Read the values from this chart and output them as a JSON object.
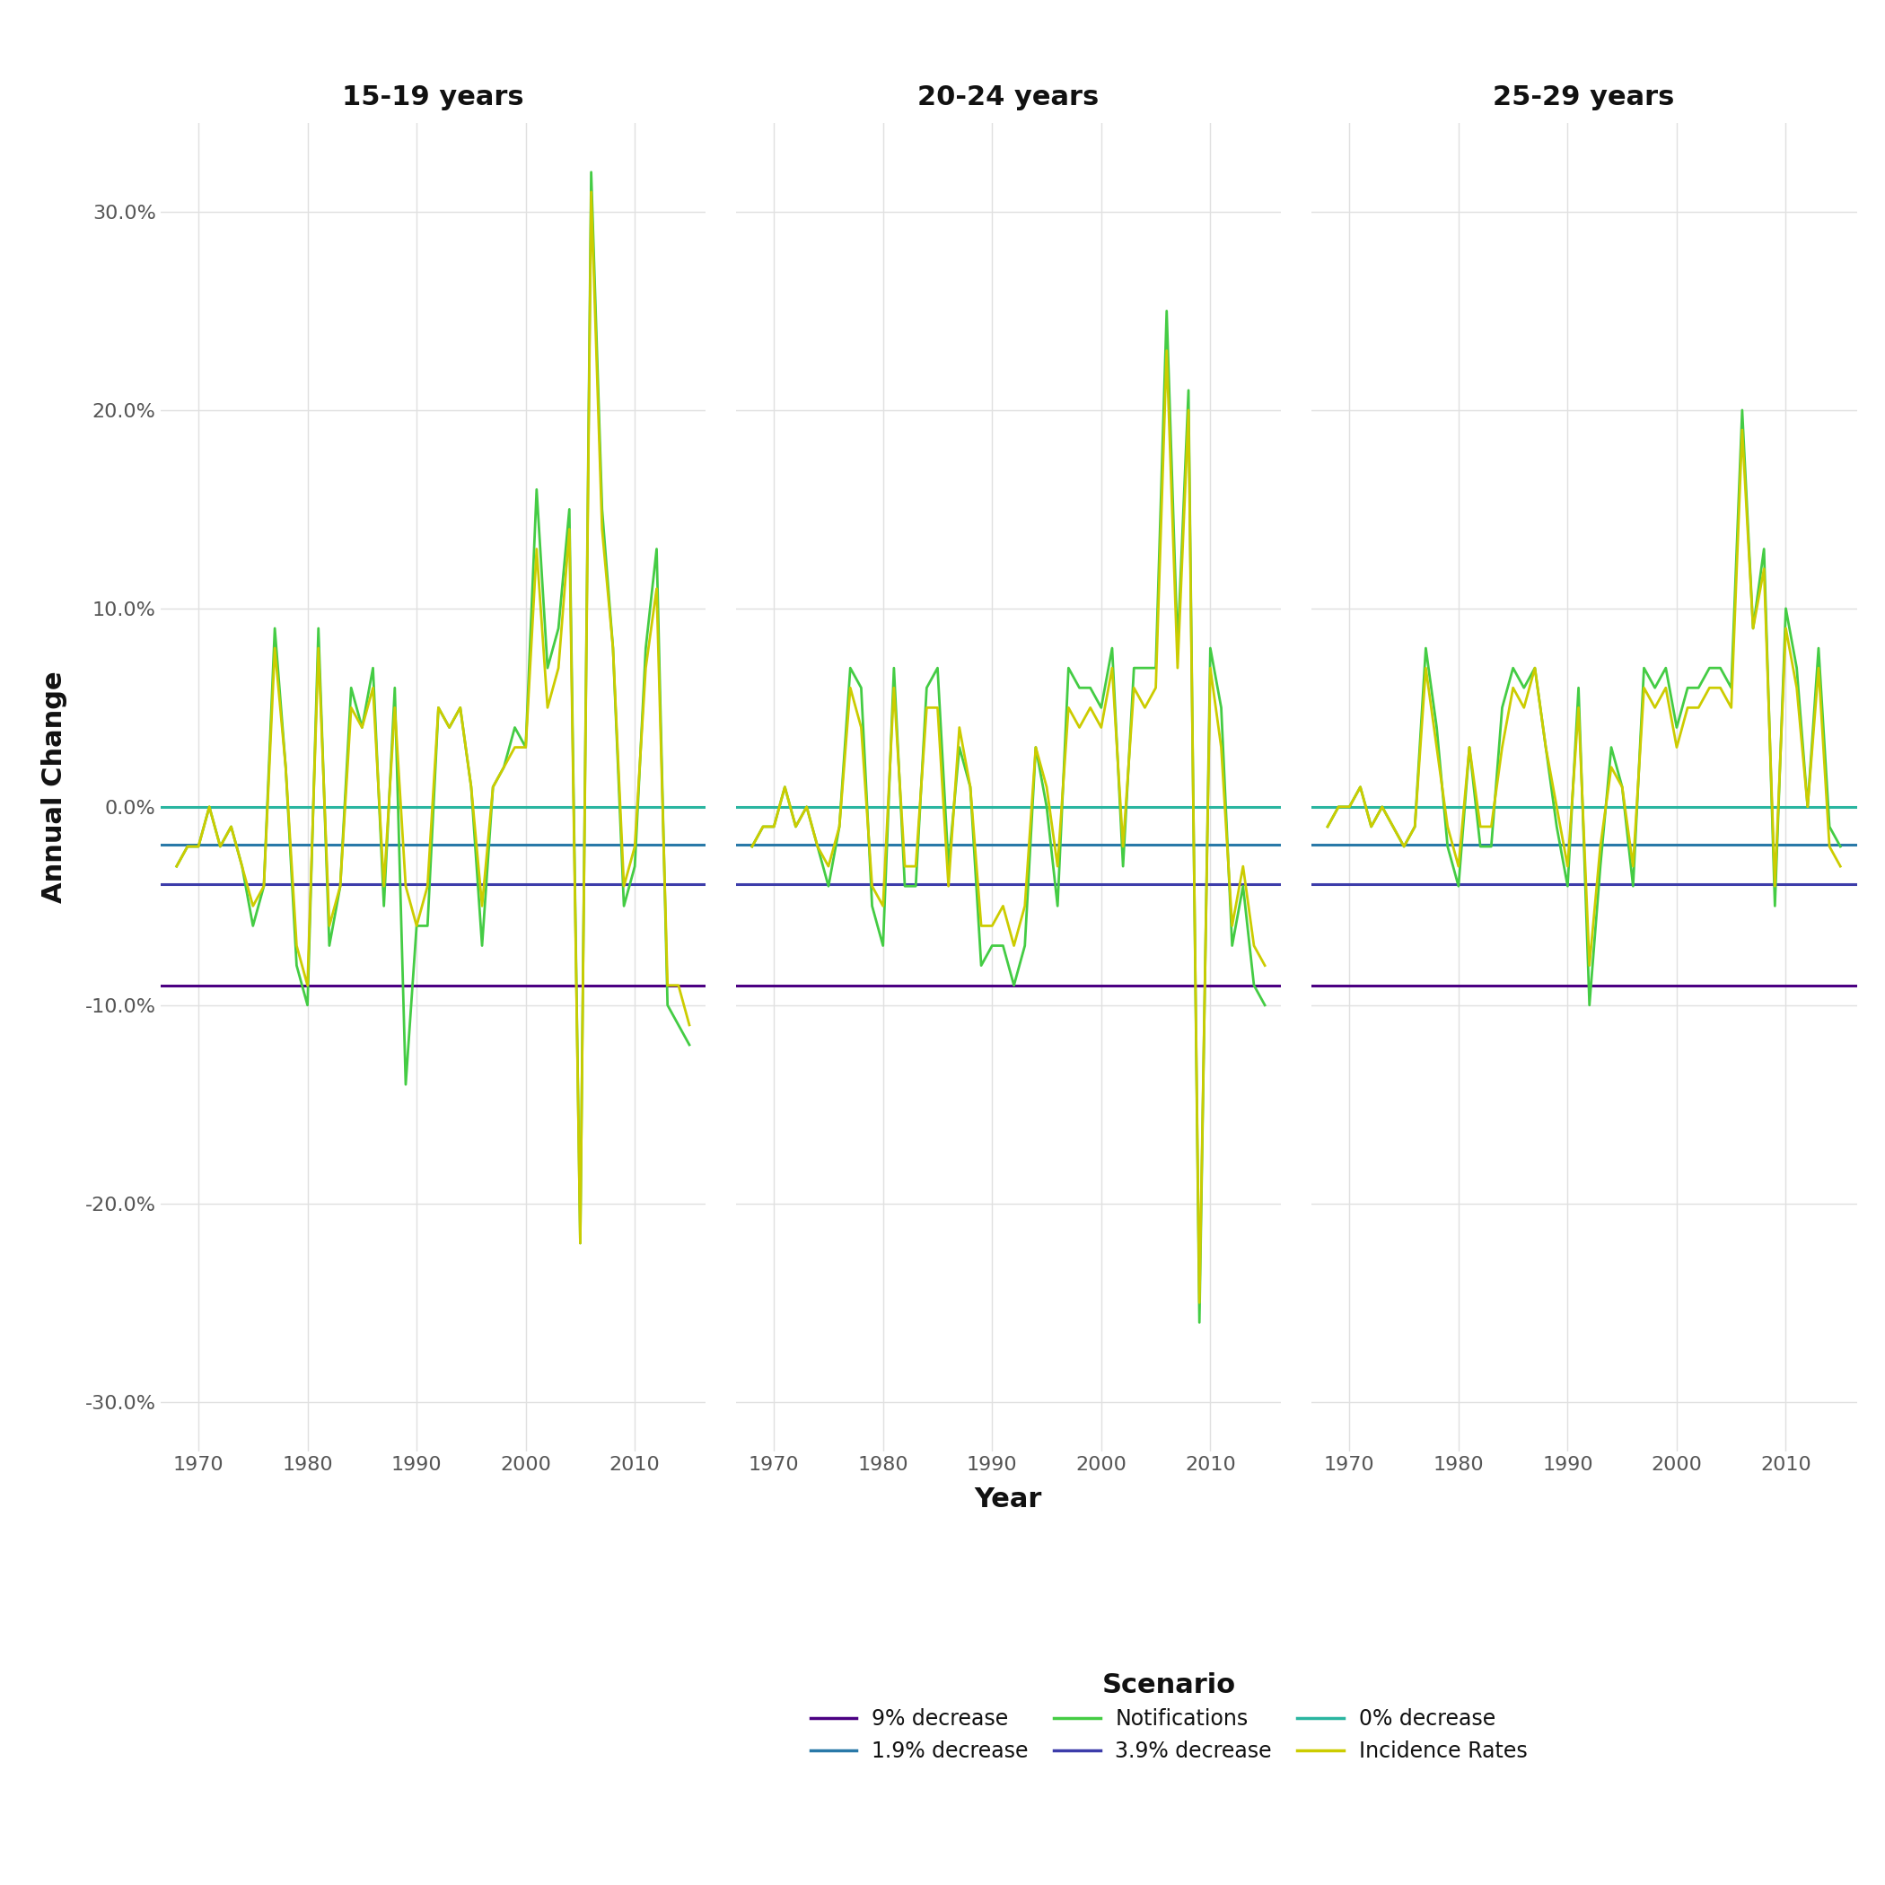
{
  "panel_titles": [
    "15-19 years",
    "20-24 years",
    "25-29 years"
  ],
  "xlabel": "Year",
  "ylabel": "Annual Change",
  "ylim": [
    -0.325,
    0.345
  ],
  "yticks": [
    -0.3,
    -0.2,
    -0.1,
    0.0,
    0.1,
    0.2,
    0.3
  ],
  "ytick_labels": [
    "-30.0%",
    "-20.0%",
    "-10.0%",
    "0.0%",
    "10.0%",
    "20.0%",
    "30.0%"
  ],
  "xlim": [
    1966.5,
    2016.5
  ],
  "xticks": [
    1970,
    1980,
    1990,
    2000,
    2010
  ],
  "fig_background": "#ffffff",
  "panel_background": "#ffffff",
  "grid_color": "#e0e0e0",
  "hline_9pct_value": -0.09,
  "hline_9pct_color": "#4b0082",
  "hline_9pct_label": "9% decrease",
  "hline_39pct_value": -0.039,
  "hline_39pct_color": "#3d3daa",
  "hline_39pct_label": "3.9% decrease",
  "hline_19pct_value": -0.019,
  "hline_19pct_color": "#2979a8",
  "hline_19pct_label": "1.9% decrease",
  "hline_0pct_value": 0.0,
  "hline_0pct_color": "#2ab5a0",
  "hline_0pct_label": "0% decrease",
  "notif_color": "#44cc44",
  "incid_color": "#cccc00",
  "notif_label": "Notifications",
  "incid_label": "Incidence Rates",
  "legend_title": "Scenario",
  "legend_title_fontsize": 22,
  "legend_fontsize": 17,
  "title_fontsize": 22,
  "tick_fontsize": 16,
  "label_fontsize": 22,
  "line_lw": 2.0,
  "hline_lw": 2.2,
  "years": [
    1968,
    1969,
    1970,
    1971,
    1972,
    1973,
    1974,
    1975,
    1976,
    1977,
    1978,
    1979,
    1980,
    1981,
    1982,
    1983,
    1984,
    1985,
    1986,
    1987,
    1988,
    1989,
    1990,
    1991,
    1992,
    1993,
    1994,
    1995,
    1996,
    1997,
    1998,
    1999,
    2000,
    2001,
    2002,
    2003,
    2004,
    2005,
    2006,
    2007,
    2008,
    2009,
    2010,
    2011,
    2012,
    2013,
    2014,
    2015
  ],
  "notif_1519": [
    -0.03,
    -0.02,
    -0.02,
    0.0,
    -0.02,
    -0.01,
    -0.03,
    -0.06,
    -0.04,
    0.09,
    0.02,
    -0.08,
    -0.1,
    0.09,
    -0.07,
    -0.04,
    0.06,
    0.04,
    0.07,
    -0.05,
    0.06,
    -0.14,
    -0.06,
    -0.06,
    0.05,
    0.04,
    0.05,
    0.01,
    -0.07,
    0.01,
    0.02,
    0.04,
    0.03,
    0.16,
    0.07,
    0.09,
    0.15,
    -0.22,
    0.32,
    0.15,
    0.08,
    -0.05,
    -0.03,
    0.08,
    0.13,
    -0.1,
    -0.11,
    -0.12
  ],
  "notif_2024": [
    -0.02,
    -0.01,
    -0.01,
    0.01,
    -0.01,
    0.0,
    -0.02,
    -0.04,
    -0.01,
    0.07,
    0.06,
    -0.05,
    -0.07,
    0.07,
    -0.04,
    -0.04,
    0.06,
    0.07,
    -0.03,
    0.03,
    0.01,
    -0.08,
    -0.07,
    -0.07,
    -0.09,
    -0.07,
    0.03,
    0.0,
    -0.05,
    0.07,
    0.06,
    0.06,
    0.05,
    0.08,
    -0.03,
    0.07,
    0.07,
    0.07,
    0.25,
    0.08,
    0.21,
    -0.26,
    0.08,
    0.05,
    -0.07,
    -0.04,
    -0.09,
    -0.1
  ],
  "notif_2529": [
    -0.01,
    0.0,
    0.0,
    0.01,
    -0.01,
    0.0,
    -0.01,
    -0.02,
    -0.01,
    0.08,
    0.04,
    -0.02,
    -0.04,
    0.03,
    -0.02,
    -0.02,
    0.05,
    0.07,
    0.06,
    0.07,
    0.03,
    -0.01,
    -0.04,
    0.06,
    -0.1,
    -0.03,
    0.03,
    0.01,
    -0.04,
    0.07,
    0.06,
    0.07,
    0.04,
    0.06,
    0.06,
    0.07,
    0.07,
    0.06,
    0.2,
    0.09,
    0.13,
    -0.05,
    0.1,
    0.07,
    0.0,
    0.08,
    -0.01,
    -0.02
  ],
  "incid_1519": [
    -0.03,
    -0.02,
    -0.02,
    0.0,
    -0.02,
    -0.01,
    -0.03,
    -0.05,
    -0.04,
    0.08,
    0.02,
    -0.07,
    -0.09,
    0.08,
    -0.06,
    -0.04,
    0.05,
    0.04,
    0.06,
    -0.04,
    0.05,
    -0.04,
    -0.06,
    -0.04,
    0.05,
    0.04,
    0.05,
    0.01,
    -0.05,
    0.01,
    0.02,
    0.03,
    0.03,
    0.13,
    0.05,
    0.07,
    0.14,
    -0.22,
    0.31,
    0.14,
    0.08,
    -0.04,
    -0.02,
    0.07,
    0.11,
    -0.09,
    -0.09,
    -0.11
  ],
  "incid_2024": [
    -0.02,
    -0.01,
    -0.01,
    0.01,
    -0.01,
    0.0,
    -0.02,
    -0.03,
    -0.01,
    0.06,
    0.04,
    -0.04,
    -0.05,
    0.06,
    -0.03,
    -0.03,
    0.05,
    0.05,
    -0.04,
    0.04,
    0.01,
    -0.06,
    -0.06,
    -0.05,
    -0.07,
    -0.05,
    0.03,
    0.01,
    -0.03,
    0.05,
    0.04,
    0.05,
    0.04,
    0.07,
    -0.02,
    0.06,
    0.05,
    0.06,
    0.23,
    0.07,
    0.2,
    -0.25,
    0.07,
    0.03,
    -0.06,
    -0.03,
    -0.07,
    -0.08
  ],
  "incid_2529": [
    -0.01,
    0.0,
    0.0,
    0.01,
    -0.01,
    0.0,
    -0.01,
    -0.02,
    -0.01,
    0.07,
    0.03,
    -0.01,
    -0.03,
    0.03,
    -0.01,
    -0.01,
    0.03,
    0.06,
    0.05,
    0.07,
    0.03,
    0.0,
    -0.03,
    0.05,
    -0.08,
    -0.02,
    0.02,
    0.01,
    -0.03,
    0.06,
    0.05,
    0.06,
    0.03,
    0.05,
    0.05,
    0.06,
    0.06,
    0.05,
    0.19,
    0.09,
    0.12,
    -0.04,
    0.09,
    0.06,
    0.0,
    0.07,
    -0.02,
    -0.03
  ]
}
